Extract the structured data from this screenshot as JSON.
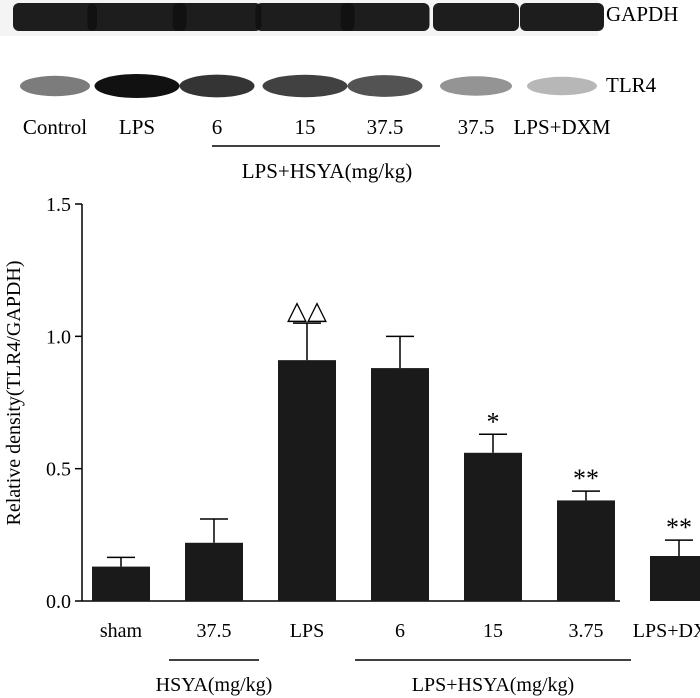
{
  "blot": {
    "bands": [
      "GAPDH",
      "TLR4"
    ],
    "lanes": [
      "Control",
      "LPS",
      "6",
      "15",
      "37.5",
      "37.5",
      "LPS+DXM"
    ],
    "group_label": "LPS+HSYA(mg/kg)",
    "tlr4_intensity": [
      0.55,
      1.0,
      0.85,
      0.8,
      0.72,
      0.45,
      0.3
    ],
    "gapdh_intensity": [
      0.95,
      0.95,
      0.95,
      0.95,
      0.95,
      0.95,
      0.95
    ]
  },
  "chart_data": {
    "type": "bar",
    "categories": [
      "sham",
      "37.5",
      "LPS",
      "6",
      "15",
      "3.75",
      "LPS+DXM"
    ],
    "values": [
      0.13,
      0.22,
      0.91,
      0.88,
      0.56,
      0.38,
      0.17
    ],
    "errors": [
      0.035,
      0.09,
      0.14,
      0.12,
      0.07,
      0.035,
      0.06
    ],
    "significance": [
      "",
      "",
      "△△",
      "",
      "*",
      "**",
      "**"
    ],
    "ylabel": "Relative density(TLR4/GAPDH)",
    "ylim": [
      0.0,
      1.5
    ],
    "yticks": [
      "0.0",
      "0.5",
      "1.0",
      "1.5"
    ],
    "groups": [
      {
        "label": "HSYA(mg/kg)",
        "from": 1,
        "to": 1
      },
      {
        "label": "LPS+HSYA(mg/kg)",
        "from": 3,
        "to": 5
      }
    ],
    "grid": false,
    "bar_color": "#1a1a1a"
  }
}
